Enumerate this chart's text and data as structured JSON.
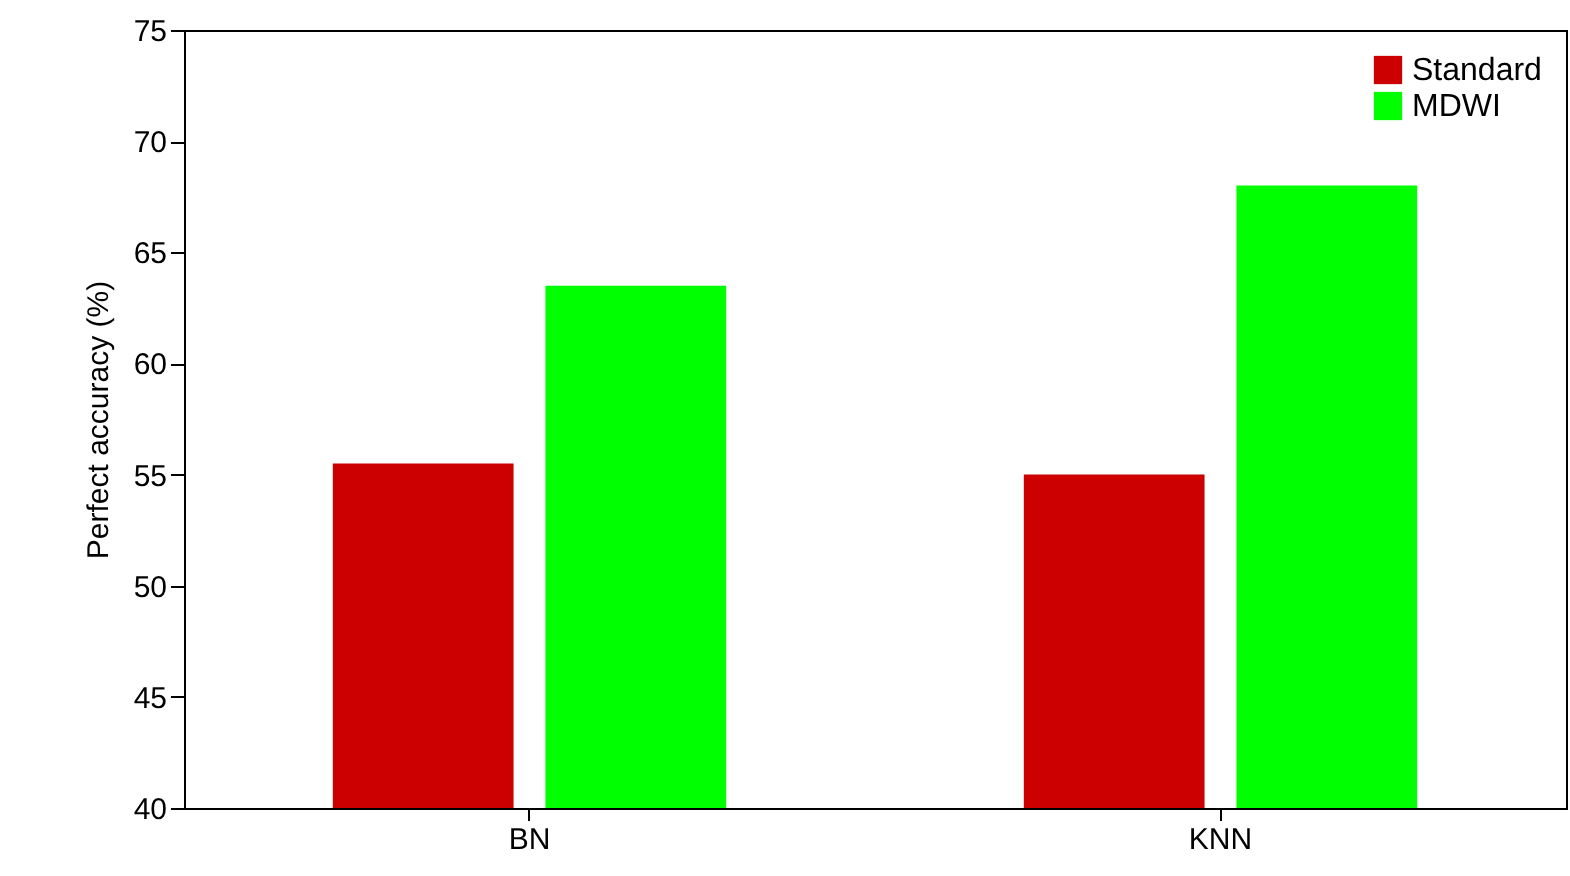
{
  "chart_data": {
    "type": "bar",
    "ylabel": "Perfect accuracy (%)",
    "categories": [
      "BN",
      "KNN"
    ],
    "series": [
      {
        "name": "Standard",
        "color": "#cc0000",
        "values": [
          55.5,
          55.0
        ]
      },
      {
        "name": "MDWI",
        "color": "#00ff00",
        "values": [
          63.5,
          68.0
        ]
      }
    ],
    "ylim": [
      40,
      75
    ],
    "yticks": [
      40,
      45,
      50,
      55,
      60,
      65,
      70,
      75
    ],
    "grid": false,
    "legend": "top right"
  }
}
